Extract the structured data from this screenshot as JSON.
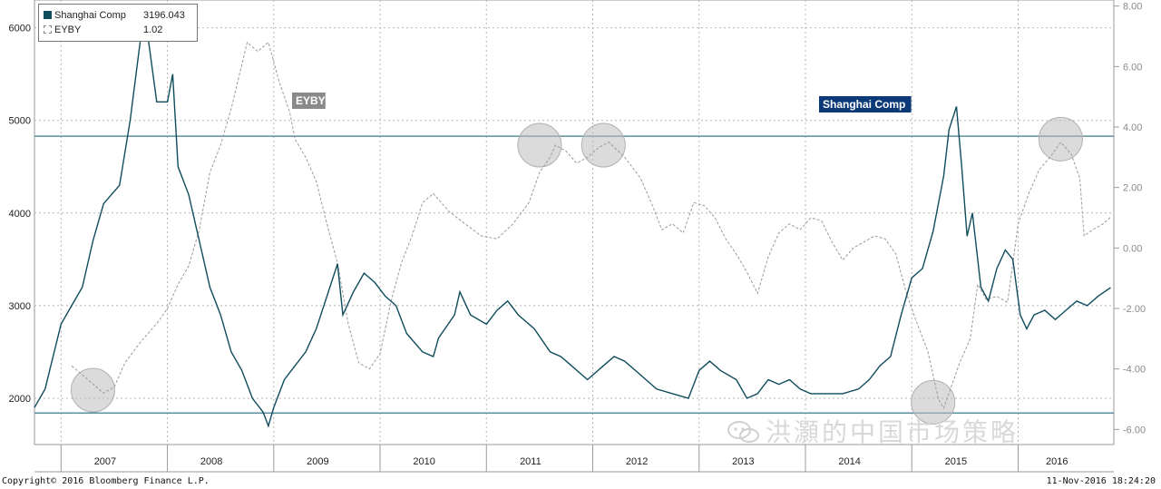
{
  "legend": {
    "items": [
      {
        "name": "Shanghai Comp",
        "value": "3196.043"
      },
      {
        "name": "EYBY",
        "value": "1.02"
      }
    ]
  },
  "labels": {
    "eyby": "EYBY",
    "shanghai": "Shanghai Comp"
  },
  "footer": {
    "copyright": "Copyright© 2016 Bloomberg Finance L.P.",
    "timestamp": "11-Nov-2016 18:24:20"
  },
  "watermark": "洪灝的中国市场策略",
  "colors": {
    "shanghai": "#0f4c5c",
    "eyby": "#9a9a9a",
    "hline": "#5b8f9f",
    "circle": "#bdbdbd"
  },
  "chart_data": {
    "type": "line",
    "x_start": 2006.75,
    "x_end": 2016.9,
    "year_labels": [
      "2007",
      "2008",
      "2009",
      "2010",
      "2011",
      "2012",
      "2013",
      "2014",
      "2015",
      "2016"
    ],
    "left_axis": {
      "ticks": [
        "2000",
        "3000",
        "4000",
        "5000",
        "6000"
      ],
      "ylim": [
        1500,
        6300
      ]
    },
    "right_axis": {
      "ticks": [
        "-6.00",
        "-4.00",
        "-2.00",
        "0.00",
        "2.00",
        "4.00",
        "6.00",
        "8.00"
      ],
      "ylim": [
        -6.5,
        8.2
      ]
    },
    "reference_lines": [
      4830,
      1840
    ],
    "highlight_circles": [
      {
        "series": "EYBY",
        "x": 2007.3,
        "y": -4.7
      },
      {
        "series": "EYBY",
        "x": 2011.5,
        "y": 3.4
      },
      {
        "series": "EYBY",
        "x": 2012.1,
        "y": 3.4
      },
      {
        "series": "EYBY",
        "x": 2015.2,
        "y": -5.1
      },
      {
        "series": "EYBY",
        "x": 2016.4,
        "y": 3.6
      }
    ],
    "series": [
      {
        "name": "Shanghai Comp",
        "axis": "left",
        "points": [
          [
            2006.75,
            1900
          ],
          [
            2006.85,
            2100
          ],
          [
            2007.0,
            2800
          ],
          [
            2007.1,
            3000
          ],
          [
            2007.2,
            3200
          ],
          [
            2007.3,
            3700
          ],
          [
            2007.4,
            4100
          ],
          [
            2007.55,
            4300
          ],
          [
            2007.65,
            5000
          ],
          [
            2007.75,
            5900
          ],
          [
            2007.8,
            6050
          ],
          [
            2007.9,
            5200
          ],
          [
            2008.0,
            5200
          ],
          [
            2008.05,
            5500
          ],
          [
            2008.1,
            4500
          ],
          [
            2008.2,
            4200
          ],
          [
            2008.3,
            3700
          ],
          [
            2008.4,
            3200
          ],
          [
            2008.5,
            2900
          ],
          [
            2008.6,
            2500
          ],
          [
            2008.7,
            2300
          ],
          [
            2008.8,
            2000
          ],
          [
            2008.9,
            1850
          ],
          [
            2008.95,
            1700
          ],
          [
            2009.0,
            1900
          ],
          [
            2009.1,
            2200
          ],
          [
            2009.2,
            2350
          ],
          [
            2009.3,
            2500
          ],
          [
            2009.4,
            2750
          ],
          [
            2009.5,
            3100
          ],
          [
            2009.6,
            3450
          ],
          [
            2009.65,
            2900
          ],
          [
            2009.75,
            3150
          ],
          [
            2009.85,
            3350
          ],
          [
            2009.95,
            3250
          ],
          [
            2010.05,
            3100
          ],
          [
            2010.15,
            3000
          ],
          [
            2010.25,
            2700
          ],
          [
            2010.4,
            2500
          ],
          [
            2010.5,
            2450
          ],
          [
            2010.55,
            2650
          ],
          [
            2010.7,
            2900
          ],
          [
            2010.75,
            3150
          ],
          [
            2010.85,
            2900
          ],
          [
            2011.0,
            2800
          ],
          [
            2011.1,
            2950
          ],
          [
            2011.2,
            3050
          ],
          [
            2011.3,
            2900
          ],
          [
            2011.45,
            2750
          ],
          [
            2011.6,
            2500
          ],
          [
            2011.7,
            2450
          ],
          [
            2011.8,
            2350
          ],
          [
            2011.95,
            2200
          ],
          [
            2012.1,
            2350
          ],
          [
            2012.2,
            2450
          ],
          [
            2012.3,
            2400
          ],
          [
            2012.45,
            2250
          ],
          [
            2012.6,
            2100
          ],
          [
            2012.75,
            2050
          ],
          [
            2012.9,
            2000
          ],
          [
            2013.0,
            2300
          ],
          [
            2013.1,
            2400
          ],
          [
            2013.2,
            2300
          ],
          [
            2013.35,
            2200
          ],
          [
            2013.45,
            2000
          ],
          [
            2013.55,
            2050
          ],
          [
            2013.65,
            2200
          ],
          [
            2013.75,
            2150
          ],
          [
            2013.85,
            2200
          ],
          [
            2013.95,
            2100
          ],
          [
            2014.05,
            2050
          ],
          [
            2014.2,
            2050
          ],
          [
            2014.35,
            2050
          ],
          [
            2014.5,
            2100
          ],
          [
            2014.6,
            2200
          ],
          [
            2014.7,
            2350
          ],
          [
            2014.8,
            2450
          ],
          [
            2014.9,
            2900
          ],
          [
            2015.0,
            3300
          ],
          [
            2015.1,
            3400
          ],
          [
            2015.2,
            3800
          ],
          [
            2015.3,
            4400
          ],
          [
            2015.35,
            4900
          ],
          [
            2015.42,
            5150
          ],
          [
            2015.47,
            4500
          ],
          [
            2015.52,
            3750
          ],
          [
            2015.57,
            4000
          ],
          [
            2015.65,
            3200
          ],
          [
            2015.72,
            3050
          ],
          [
            2015.8,
            3400
          ],
          [
            2015.88,
            3600
          ],
          [
            2015.95,
            3500
          ],
          [
            2016.02,
            2900
          ],
          [
            2016.08,
            2750
          ],
          [
            2016.15,
            2900
          ],
          [
            2016.25,
            2950
          ],
          [
            2016.35,
            2850
          ],
          [
            2016.45,
            2950
          ],
          [
            2016.55,
            3050
          ],
          [
            2016.65,
            3000
          ],
          [
            2016.75,
            3100
          ],
          [
            2016.87,
            3196
          ]
        ]
      },
      {
        "name": "EYBY",
        "axis": "right",
        "points": [
          [
            2007.1,
            -3.9
          ],
          [
            2007.2,
            -4.2
          ],
          [
            2007.3,
            -4.5
          ],
          [
            2007.4,
            -4.8
          ],
          [
            2007.5,
            -4.6
          ],
          [
            2007.6,
            -3.8
          ],
          [
            2007.75,
            -3.1
          ],
          [
            2007.9,
            -2.5
          ],
          [
            2008.0,
            -2.0
          ],
          [
            2008.1,
            -1.2
          ],
          [
            2008.2,
            -0.6
          ],
          [
            2008.3,
            0.6
          ],
          [
            2008.4,
            2.5
          ],
          [
            2008.5,
            3.4
          ],
          [
            2008.6,
            4.6
          ],
          [
            2008.75,
            6.8
          ],
          [
            2008.85,
            6.5
          ],
          [
            2008.95,
            6.8
          ],
          [
            2009.05,
            5.5
          ],
          [
            2009.15,
            4.5
          ],
          [
            2009.2,
            3.6
          ],
          [
            2009.3,
            3.0
          ],
          [
            2009.4,
            2.2
          ],
          [
            2009.5,
            0.8
          ],
          [
            2009.6,
            -0.5
          ],
          [
            2009.7,
            -2.5
          ],
          [
            2009.8,
            -3.8
          ],
          [
            2009.9,
            -4.0
          ],
          [
            2010.0,
            -3.5
          ],
          [
            2010.1,
            -1.8
          ],
          [
            2010.2,
            -0.5
          ],
          [
            2010.3,
            0.4
          ],
          [
            2010.4,
            1.5
          ],
          [
            2010.5,
            1.8
          ],
          [
            2010.65,
            1.2
          ],
          [
            2010.8,
            0.8
          ],
          [
            2010.95,
            0.4
          ],
          [
            2011.1,
            0.3
          ],
          [
            2011.25,
            0.8
          ],
          [
            2011.4,
            1.5
          ],
          [
            2011.5,
            2.5
          ],
          [
            2011.6,
            3.0
          ],
          [
            2011.65,
            3.4
          ],
          [
            2011.75,
            3.2
          ],
          [
            2011.85,
            2.8
          ],
          [
            2011.95,
            3.0
          ],
          [
            2012.05,
            3.3
          ],
          [
            2012.15,
            3.5
          ],
          [
            2012.3,
            3.0
          ],
          [
            2012.45,
            2.3
          ],
          [
            2012.55,
            1.5
          ],
          [
            2012.65,
            0.6
          ],
          [
            2012.75,
            0.8
          ],
          [
            2012.85,
            0.5
          ],
          [
            2012.95,
            1.5
          ],
          [
            2013.05,
            1.4
          ],
          [
            2013.15,
            1.0
          ],
          [
            2013.25,
            0.3
          ],
          [
            2013.35,
            -0.2
          ],
          [
            2013.45,
            -0.8
          ],
          [
            2013.55,
            -1.5
          ],
          [
            2013.65,
            -0.3
          ],
          [
            2013.75,
            0.5
          ],
          [
            2013.85,
            0.8
          ],
          [
            2013.95,
            0.6
          ],
          [
            2014.05,
            1.0
          ],
          [
            2014.15,
            0.9
          ],
          [
            2014.25,
            0.2
          ],
          [
            2014.35,
            -0.4
          ],
          [
            2014.45,
            0.0
          ],
          [
            2014.55,
            0.2
          ],
          [
            2014.65,
            0.4
          ],
          [
            2014.75,
            0.3
          ],
          [
            2014.85,
            -0.2
          ],
          [
            2014.95,
            -1.5
          ],
          [
            2015.05,
            -2.5
          ],
          [
            2015.15,
            -3.4
          ],
          [
            2015.2,
            -4.2
          ],
          [
            2015.25,
            -5.0
          ],
          [
            2015.3,
            -5.3
          ],
          [
            2015.35,
            -4.8
          ],
          [
            2015.45,
            -3.8
          ],
          [
            2015.55,
            -3.0
          ],
          [
            2015.62,
            -1.2
          ],
          [
            2015.7,
            -1.7
          ],
          [
            2015.8,
            -1.6
          ],
          [
            2015.9,
            -1.8
          ],
          [
            2016.0,
            0.8
          ],
          [
            2016.1,
            1.8
          ],
          [
            2016.2,
            2.6
          ],
          [
            2016.3,
            3.0
          ],
          [
            2016.4,
            3.5
          ],
          [
            2016.5,
            3.1
          ],
          [
            2016.58,
            2.3
          ],
          [
            2016.62,
            0.4
          ],
          [
            2016.7,
            0.6
          ],
          [
            2016.8,
            0.8
          ],
          [
            2016.87,
            1.02
          ]
        ]
      }
    ]
  }
}
